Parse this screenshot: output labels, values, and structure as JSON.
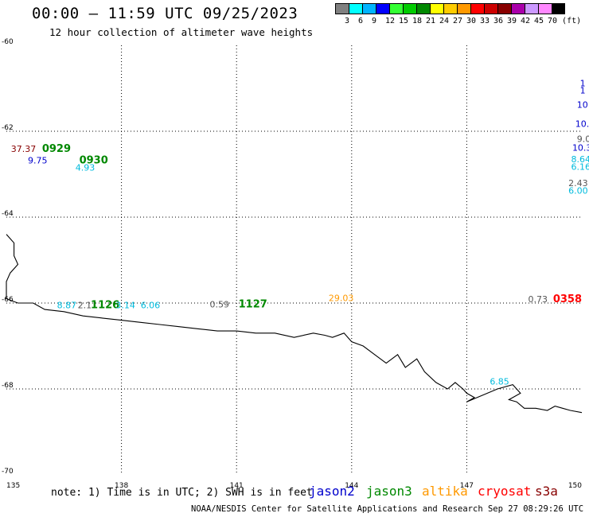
{
  "header": {
    "title": "00:00 – 11:59 UTC 09/25/2023",
    "subtitle": "12 hour collection of altimeter wave heights"
  },
  "legend": {
    "colors": [
      "#808080",
      "#00ffff",
      "#00b4ff",
      "#0000ff",
      "#33ff33",
      "#00cc00",
      "#008800",
      "#ffff00",
      "#ffcc00",
      "#ff9900",
      "#ff0000",
      "#cc0000",
      "#880000",
      "#aa00aa",
      "#cc99ff",
      "#ff88ff",
      "#000000"
    ],
    "labels": [
      "3",
      "6",
      "9",
      "12",
      "15",
      "18",
      "21",
      "24",
      "27",
      "30",
      "33",
      "36",
      "39",
      "42",
      "45",
      "70 (ft)"
    ]
  },
  "map": {
    "lon_min": 135,
    "lon_max": 150,
    "lat_min": -70,
    "lat_max": -60,
    "lon_ticks": [
      "135",
      "138",
      "141",
      "144",
      "147",
      "150"
    ],
    "lat_ticks": [
      "-60",
      "-62",
      "-64",
      "-66",
      "-68",
      "-70"
    ],
    "coastline": [
      [
        135.0,
        -64.4
      ],
      [
        135.1,
        -64.5
      ],
      [
        135.2,
        -64.6
      ],
      [
        135.2,
        -64.9
      ],
      [
        135.3,
        -65.1
      ],
      [
        135.1,
        -65.3
      ],
      [
        135.0,
        -65.5
      ],
      [
        135.0,
        -65.9
      ],
      [
        135.3,
        -66.0
      ],
      [
        135.7,
        -66.0
      ],
      [
        136.0,
        -66.15
      ],
      [
        136.5,
        -66.2
      ],
      [
        137.0,
        -66.3
      ],
      [
        137.5,
        -66.35
      ],
      [
        138.0,
        -66.4
      ],
      [
        138.5,
        -66.45
      ],
      [
        139.0,
        -66.5
      ],
      [
        139.5,
        -66.55
      ],
      [
        140.0,
        -66.6
      ],
      [
        140.5,
        -66.65
      ],
      [
        141.0,
        -66.65
      ],
      [
        141.5,
        -66.7
      ],
      [
        142.0,
        -66.7
      ],
      [
        142.5,
        -66.8
      ],
      [
        143.0,
        -66.7
      ],
      [
        143.3,
        -66.75
      ],
      [
        143.5,
        -66.8
      ],
      [
        143.8,
        -66.7
      ],
      [
        144.0,
        -66.9
      ],
      [
        144.3,
        -67.0
      ],
      [
        144.6,
        -67.2
      ],
      [
        144.9,
        -67.4
      ],
      [
        145.2,
        -67.2
      ],
      [
        145.4,
        -67.5
      ],
      [
        145.7,
        -67.3
      ],
      [
        145.9,
        -67.6
      ],
      [
        146.2,
        -67.85
      ],
      [
        146.5,
        -68.0
      ],
      [
        146.7,
        -67.85
      ],
      [
        146.9,
        -68.0
      ],
      [
        147.0,
        -68.1
      ],
      [
        147.2,
        -68.2
      ],
      [
        147.0,
        -68.3
      ],
      [
        147.4,
        -68.15
      ],
      [
        147.8,
        -68.0
      ],
      [
        148.2,
        -67.9
      ],
      [
        148.4,
        -68.1
      ],
      [
        148.1,
        -68.25
      ],
      [
        148.3,
        -68.3
      ],
      [
        148.5,
        -68.45
      ],
      [
        148.8,
        -68.45
      ],
      [
        149.1,
        -68.5
      ],
      [
        149.3,
        -68.4
      ],
      [
        149.5,
        -68.45
      ],
      [
        149.7,
        -68.5
      ],
      [
        150.0,
        -68.55
      ]
    ]
  },
  "annotations": [
    {
      "text": "37.37",
      "lon": 135.12,
      "lat": -62.48,
      "color": "#880000",
      "size": 11
    },
    {
      "text": "0929",
      "lon": 135.93,
      "lat": -62.48,
      "color": "#008800",
      "size": 13
    },
    {
      "text": "9.75",
      "lon": 135.56,
      "lat": -62.75,
      "color": "#0000cc",
      "size": 11
    },
    {
      "text": "0930",
      "lon": 136.9,
      "lat": -62.75,
      "color": "#008800",
      "size": 13
    },
    {
      "text": "4.93",
      "lon": 136.8,
      "lat": -62.92,
      "color": "#00bbdd",
      "size": 11
    },
    {
      "text": "8.87",
      "lon": 136.32,
      "lat": -66.12,
      "color": "#00bbdd",
      "size": 11
    },
    {
      "text": "2.1",
      "lon": 136.86,
      "lat": -66.12,
      "color": "#555555",
      "size": 11
    },
    {
      "text": "1126",
      "lon": 137.2,
      "lat": -66.12,
      "color": "#008800",
      "size": 13
    },
    {
      "text": "3.14",
      "lon": 137.85,
      "lat": -66.12,
      "color": "#00bbdd",
      "size": 11
    },
    {
      "text": "6.06",
      "lon": 138.5,
      "lat": -66.12,
      "color": "#00bbdd",
      "size": 11
    },
    {
      "text": "0.59",
      "lon": 140.3,
      "lat": -66.1,
      "color": "#555555",
      "size": 11
    },
    {
      "text": "1127",
      "lon": 141.05,
      "lat": -66.1,
      "color": "#008800",
      "size": 13
    },
    {
      "text": "29.03",
      "lon": 143.4,
      "lat": -65.95,
      "color": "#ff9900",
      "size": 11
    },
    {
      "text": "0.73",
      "lon": 148.6,
      "lat": -65.98,
      "color": "#555555",
      "size": 11
    },
    {
      "text": "0358",
      "lon": 149.25,
      "lat": -65.98,
      "color": "#ff0000",
      "size": 13
    },
    {
      "text": "1",
      "lon": 149.95,
      "lat": -60.95,
      "color": "#0000cc",
      "size": 11
    },
    {
      "text": "1",
      "lon": 149.95,
      "lat": -61.12,
      "color": "#0000cc",
      "size": 11
    },
    {
      "text": "10",
      "lon": 149.87,
      "lat": -61.45,
      "color": "#0000cc",
      "size": 11
    },
    {
      "text": "10.",
      "lon": 149.83,
      "lat": -61.9,
      "color": "#0000cc",
      "size": 11
    },
    {
      "text": "9.0",
      "lon": 149.87,
      "lat": -62.25,
      "color": "#555555",
      "size": 11
    },
    {
      "text": "10.3",
      "lon": 149.75,
      "lat": -62.45,
      "color": "#0000cc",
      "size": 11
    },
    {
      "text": "8.64",
      "lon": 149.72,
      "lat": -62.72,
      "color": "#00bbdd",
      "size": 11
    },
    {
      "text": "6.16",
      "lon": 149.72,
      "lat": -62.9,
      "color": "#00bbdd",
      "size": 11
    },
    {
      "text": "2.43",
      "lon": 149.65,
      "lat": -63.28,
      "color": "#555555",
      "size": 11
    },
    {
      "text": "6.00",
      "lon": 149.65,
      "lat": -63.45,
      "color": "#00bbdd",
      "size": 11
    },
    {
      "text": "6.85",
      "lon": 147.6,
      "lat": -67.9,
      "color": "#00bbdd",
      "size": 11
    }
  ],
  "footer": {
    "note": "note: 1) Time is in UTC; 2) SWH is in feet",
    "satellites": [
      {
        "name": "jason2",
        "color": "#0000cc"
      },
      {
        "name": "jason3",
        "color": "#008800"
      },
      {
        "name": "altika",
        "color": "#ff9900"
      },
      {
        "name": "cryosat",
        "color": "#ff0000"
      },
      {
        "name": "s3a",
        "color": "#880000"
      }
    ],
    "credit": "NOAA/NESDIS Center for Satellite Applications and Research   Sep 27 08:29:26 UTC 2023"
  }
}
